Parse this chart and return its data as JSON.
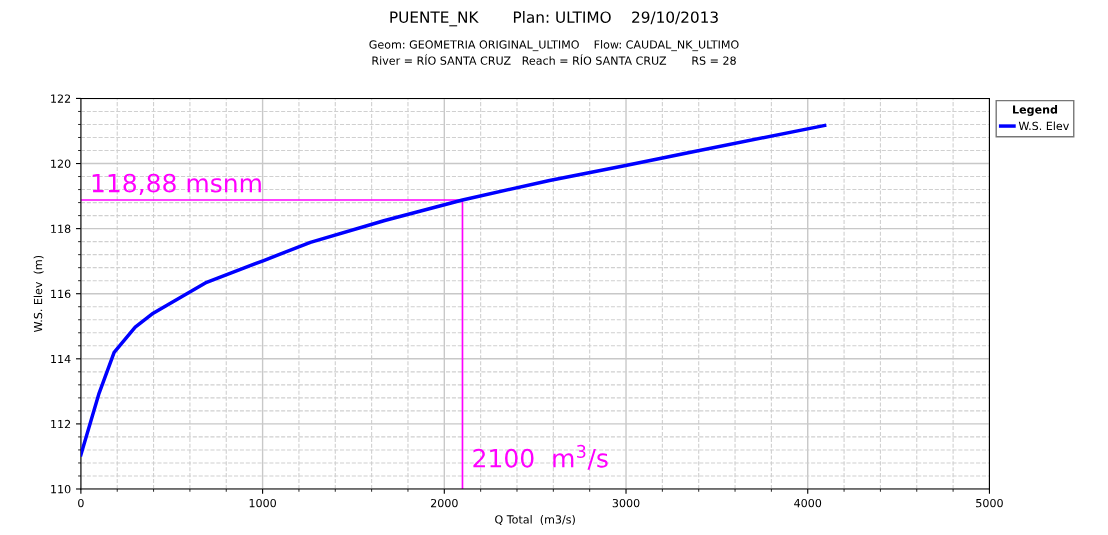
{
  "chart_data": {
    "type": "line",
    "title": "PUENTE_NK       Plan: ULTIMO    29/10/2013",
    "subtitle": "Geom: GEOMETRIA ORIGINAL_ULTIMO    Flow: CAUDAL_NK_ULTIMO\nRiver = RÍO SANTA CRUZ   Reach = RÍO SANTA CRUZ       RS = 28",
    "xlabel": "Q Total  (m3/s)",
    "ylabel": "W.S. Elev  (m)",
    "legend_title": "Legend",
    "series": [
      {
        "name": "W.S. Elev",
        "color": "#0000ff",
        "x": [
          0,
          100,
          183,
          299,
          398,
          692,
          1006,
          1263,
          1672,
          2100,
          2579,
          2998,
          3349,
          4093
        ],
        "values": [
          111.05,
          112.94,
          114.2,
          114.97,
          115.4,
          116.35,
          117.02,
          117.58,
          118.25,
          118.88,
          119.48,
          119.94,
          120.34,
          121.17
        ]
      }
    ],
    "xlim": [
      0,
      5000
    ],
    "xticks": [
      0,
      1000,
      2000,
      3000,
      4000,
      5000
    ],
    "ylim": [
      110,
      122
    ],
    "yticks": [
      110,
      112,
      114,
      116,
      118,
      120,
      122
    ],
    "ref_lines": [
      {
        "axis": "y",
        "value": 118.88,
        "label": "118,88 msnm",
        "color": "#ff00ff"
      },
      {
        "axis": "x",
        "value": 2100,
        "label": "2100  m$^{3}$/s",
        "color": "#ff00ff"
      }
    ],
    "grid": true,
    "legend": "top right",
    "line_style": "solid",
    "marker": "none"
  }
}
